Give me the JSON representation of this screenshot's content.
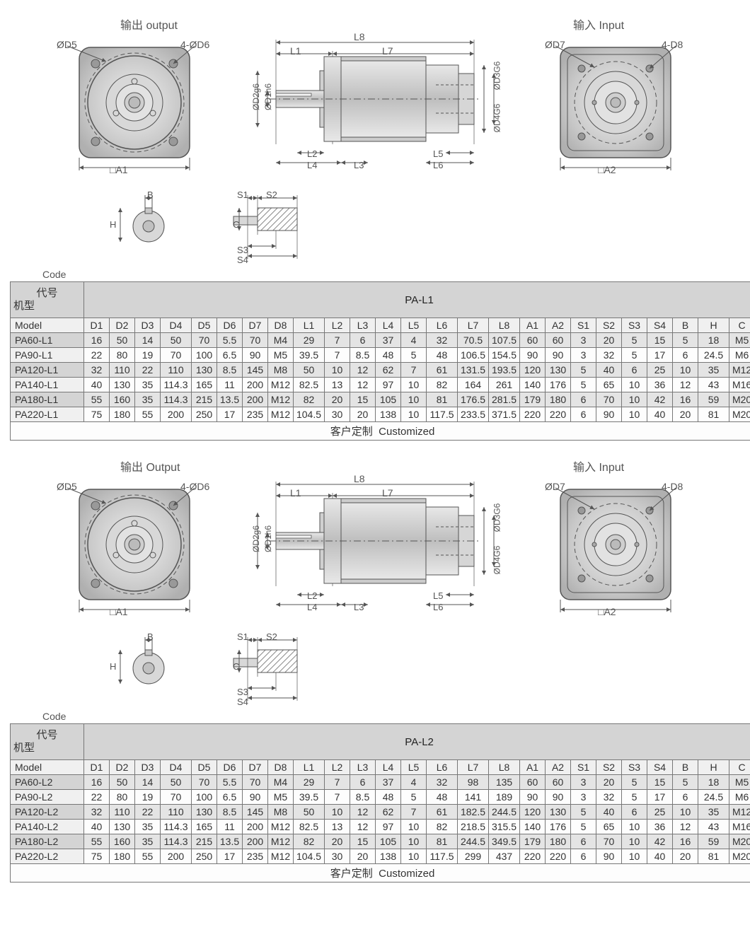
{
  "colors": {
    "line": "#555555",
    "metal_light": "#e0e0e0",
    "metal_mid": "#cfcfcf",
    "metal_dark": "#b5b5b5",
    "hatch": "#888888",
    "bg": "#ffffff"
  },
  "labels": {
    "output_zh": "输出",
    "output_en": "output",
    "output_en_cap": "Output",
    "input_zh": "输入",
    "input_en": "Input",
    "code": "Code",
    "model": "Model",
    "jixing": "机型",
    "daihao": "代号",
    "customized_zh": "客户定制",
    "customized_en": "Customized",
    "d1": "ØD1h6",
    "d2": "ØD2g6",
    "d3": "ØD3G6",
    "d4": "ØD4G6",
    "d5": "ØD5",
    "d6": "4-ØD6",
    "d7": "ØD7",
    "d8": "4-D8",
    "a1": "□A1",
    "a2": "□A2",
    "l1": "L1",
    "l2": "L2",
    "l3": "L3",
    "l4": "L4",
    "l5": "L5",
    "l6": "L6",
    "l7": "L7",
    "l8": "L8",
    "s1": "S1",
    "s2": "S2",
    "s3": "S3",
    "s4": "S4",
    "b": "B",
    "h": "H",
    "c": "C"
  },
  "table1": {
    "title": "PA-L1",
    "columns": [
      "D1",
      "D2",
      "D3",
      "D4",
      "D5",
      "D6",
      "D7",
      "D8",
      "L1",
      "L2",
      "L3",
      "L4",
      "L5",
      "L6",
      "L7",
      "L8",
      "A1",
      "A2",
      "S1",
      "S2",
      "S3",
      "S4",
      "B",
      "H",
      "C"
    ],
    "rows": [
      {
        "m": "PA60-L1",
        "v": [
          "16",
          "50",
          "14",
          "50",
          "70",
          "5.5",
          "70",
          "M4",
          "29",
          "7",
          "6",
          "37",
          "4",
          "32",
          "70.5",
          "107.5",
          "60",
          "60",
          "3",
          "20",
          "5",
          "15",
          "5",
          "18",
          "M5"
        ]
      },
      {
        "m": "PA90-L1",
        "v": [
          "22",
          "80",
          "19",
          "70",
          "100",
          "6.5",
          "90",
          "M5",
          "39.5",
          "7",
          "8.5",
          "48",
          "5",
          "48",
          "106.5",
          "154.5",
          "90",
          "90",
          "3",
          "32",
          "5",
          "17",
          "6",
          "24.5",
          "M6"
        ]
      },
      {
        "m": "PA120-L1",
        "v": [
          "32",
          "110",
          "22",
          "110",
          "130",
          "8.5",
          "145",
          "M8",
          "50",
          "10",
          "12",
          "62",
          "7",
          "61",
          "131.5",
          "193.5",
          "120",
          "130",
          "5",
          "40",
          "6",
          "25",
          "10",
          "35",
          "M12"
        ]
      },
      {
        "m": "PA140-L1",
        "v": [
          "40",
          "130",
          "35",
          "114.3",
          "165",
          "11",
          "200",
          "M12",
          "82.5",
          "13",
          "12",
          "97",
          "10",
          "82",
          "164",
          "261",
          "140",
          "176",
          "5",
          "65",
          "10",
          "36",
          "12",
          "43",
          "M16"
        ]
      },
      {
        "m": "PA180-L1",
        "v": [
          "55",
          "160",
          "35",
          "114.3",
          "215",
          "13.5",
          "200",
          "M12",
          "82",
          "20",
          "15",
          "105",
          "10",
          "81",
          "176.5",
          "281.5",
          "179",
          "180",
          "6",
          "70",
          "10",
          "42",
          "16",
          "59",
          "M20"
        ]
      },
      {
        "m": "PA220-L1",
        "v": [
          "75",
          "180",
          "55",
          "200",
          "250",
          "17",
          "235",
          "M12",
          "104.5",
          "30",
          "20",
          "138",
          "10",
          "117.5",
          "233.5",
          "371.5",
          "220",
          "220",
          "6",
          "90",
          "10",
          "40",
          "20",
          "81",
          "M20"
        ]
      }
    ]
  },
  "table2": {
    "title": "PA-L2",
    "columns": [
      "D1",
      "D2",
      "D3",
      "D4",
      "D5",
      "D6",
      "D7",
      "D8",
      "L1",
      "L2",
      "L3",
      "L4",
      "L5",
      "L6",
      "L7",
      "L8",
      "A1",
      "A2",
      "S1",
      "S2",
      "S3",
      "S4",
      "B",
      "H",
      "C"
    ],
    "rows": [
      {
        "m": "PA60-L2",
        "v": [
          "16",
          "50",
          "14",
          "50",
          "70",
          "5.5",
          "70",
          "M4",
          "29",
          "7",
          "6",
          "37",
          "4",
          "32",
          "98",
          "135",
          "60",
          "60",
          "3",
          "20",
          "5",
          "15",
          "5",
          "18",
          "M5"
        ]
      },
      {
        "m": "PA90-L2",
        "v": [
          "22",
          "80",
          "19",
          "70",
          "100",
          "6.5",
          "90",
          "M5",
          "39.5",
          "7",
          "8.5",
          "48",
          "5",
          "48",
          "141",
          "189",
          "90",
          "90",
          "3",
          "32",
          "5",
          "17",
          "6",
          "24.5",
          "M6"
        ]
      },
      {
        "m": "PA120-L2",
        "v": [
          "32",
          "110",
          "22",
          "110",
          "130",
          "8.5",
          "145",
          "M8",
          "50",
          "10",
          "12",
          "62",
          "7",
          "61",
          "182.5",
          "244.5",
          "120",
          "130",
          "5",
          "40",
          "6",
          "25",
          "10",
          "35",
          "M12"
        ]
      },
      {
        "m": "PA140-L2",
        "v": [
          "40",
          "130",
          "35",
          "114.3",
          "165",
          "11",
          "200",
          "M12",
          "82.5",
          "13",
          "12",
          "97",
          "10",
          "82",
          "218.5",
          "315.5",
          "140",
          "176",
          "5",
          "65",
          "10",
          "36",
          "12",
          "43",
          "M16"
        ]
      },
      {
        "m": "PA180-L2",
        "v": [
          "55",
          "160",
          "35",
          "114.3",
          "215",
          "13.5",
          "200",
          "M12",
          "82",
          "20",
          "15",
          "105",
          "10",
          "81",
          "244.5",
          "349.5",
          "179",
          "180",
          "6",
          "70",
          "10",
          "42",
          "16",
          "59",
          "M20"
        ]
      },
      {
        "m": "PA220-L2",
        "v": [
          "75",
          "180",
          "55",
          "200",
          "250",
          "17",
          "235",
          "M12",
          "104.5",
          "30",
          "20",
          "138",
          "10",
          "117.5",
          "299",
          "437",
          "220",
          "220",
          "6",
          "90",
          "10",
          "40",
          "20",
          "81",
          "M20"
        ]
      }
    ]
  }
}
